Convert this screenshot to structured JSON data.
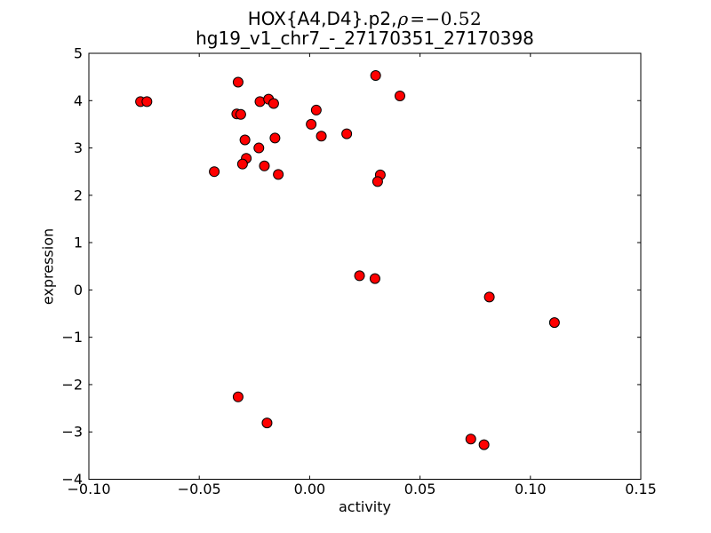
{
  "figure": {
    "title_line1_prefix": "HOX{A4,D4}.p2,",
    "title_rho": "ρ",
    "title_rho_value": "=−0.52",
    "title_line2": "hg19_v1_chr7_-_27170351_27170398"
  },
  "chart_data": {
    "type": "scatter",
    "title": "HOX{A4,D4}.p2, ρ=−0.52",
    "subtitle": "hg19_v1_chr7_-_27170351_27170398",
    "rho": -0.52,
    "xlabel": "activity",
    "ylabel": "expression",
    "xlim": [
      -0.1,
      0.15
    ],
    "ylim": [
      -4,
      5
    ],
    "xticks": [
      -0.1,
      -0.05,
      0.0,
      0.05,
      0.1,
      0.15
    ],
    "xtick_labels": [
      "−0.10",
      "−0.05",
      "0.00",
      "0.05",
      "0.10",
      "0.15"
    ],
    "yticks": [
      -4,
      -3,
      -2,
      -1,
      0,
      1,
      2,
      3,
      4,
      5
    ],
    "ytick_labels": [
      "−4",
      "−3",
      "−2",
      "−1",
      "0",
      "1",
      "2",
      "3",
      "4",
      "5"
    ],
    "grid": false,
    "legend": null,
    "marker": {
      "shape": "circle",
      "fill": "#ff0000",
      "edge": "#000000",
      "radius_px": 5.5
    },
    "points": [
      [
        -0.0766,
        3.98
      ],
      [
        -0.0737,
        3.98
      ],
      [
        -0.0324,
        4.39
      ],
      [
        -0.033,
        3.72
      ],
      [
        -0.0312,
        3.71
      ],
      [
        -0.0225,
        3.98
      ],
      [
        -0.0186,
        4.03
      ],
      [
        -0.0163,
        3.94
      ],
      [
        0.003,
        3.8
      ],
      [
        0.0007,
        3.5
      ],
      [
        -0.0293,
        3.17
      ],
      [
        -0.0157,
        3.21
      ],
      [
        0.0053,
        3.25
      ],
      [
        0.0168,
        3.3
      ],
      [
        -0.023,
        3.0
      ],
      [
        -0.0287,
        2.78
      ],
      [
        -0.0304,
        2.66
      ],
      [
        -0.0205,
        2.62
      ],
      [
        -0.0432,
        2.5
      ],
      [
        -0.0142,
        2.44
      ],
      [
        0.0299,
        4.53
      ],
      [
        0.0409,
        4.1
      ],
      [
        0.032,
        2.43
      ],
      [
        0.0308,
        2.29
      ],
      [
        0.0226,
        0.3
      ],
      [
        0.0296,
        0.24
      ],
      [
        0.0814,
        -0.15
      ],
      [
        0.1109,
        -0.69
      ],
      [
        -0.0324,
        -2.26
      ],
      [
        -0.0193,
        -2.81
      ],
      [
        0.073,
        -3.15
      ],
      [
        0.079,
        -3.27
      ]
    ]
  }
}
